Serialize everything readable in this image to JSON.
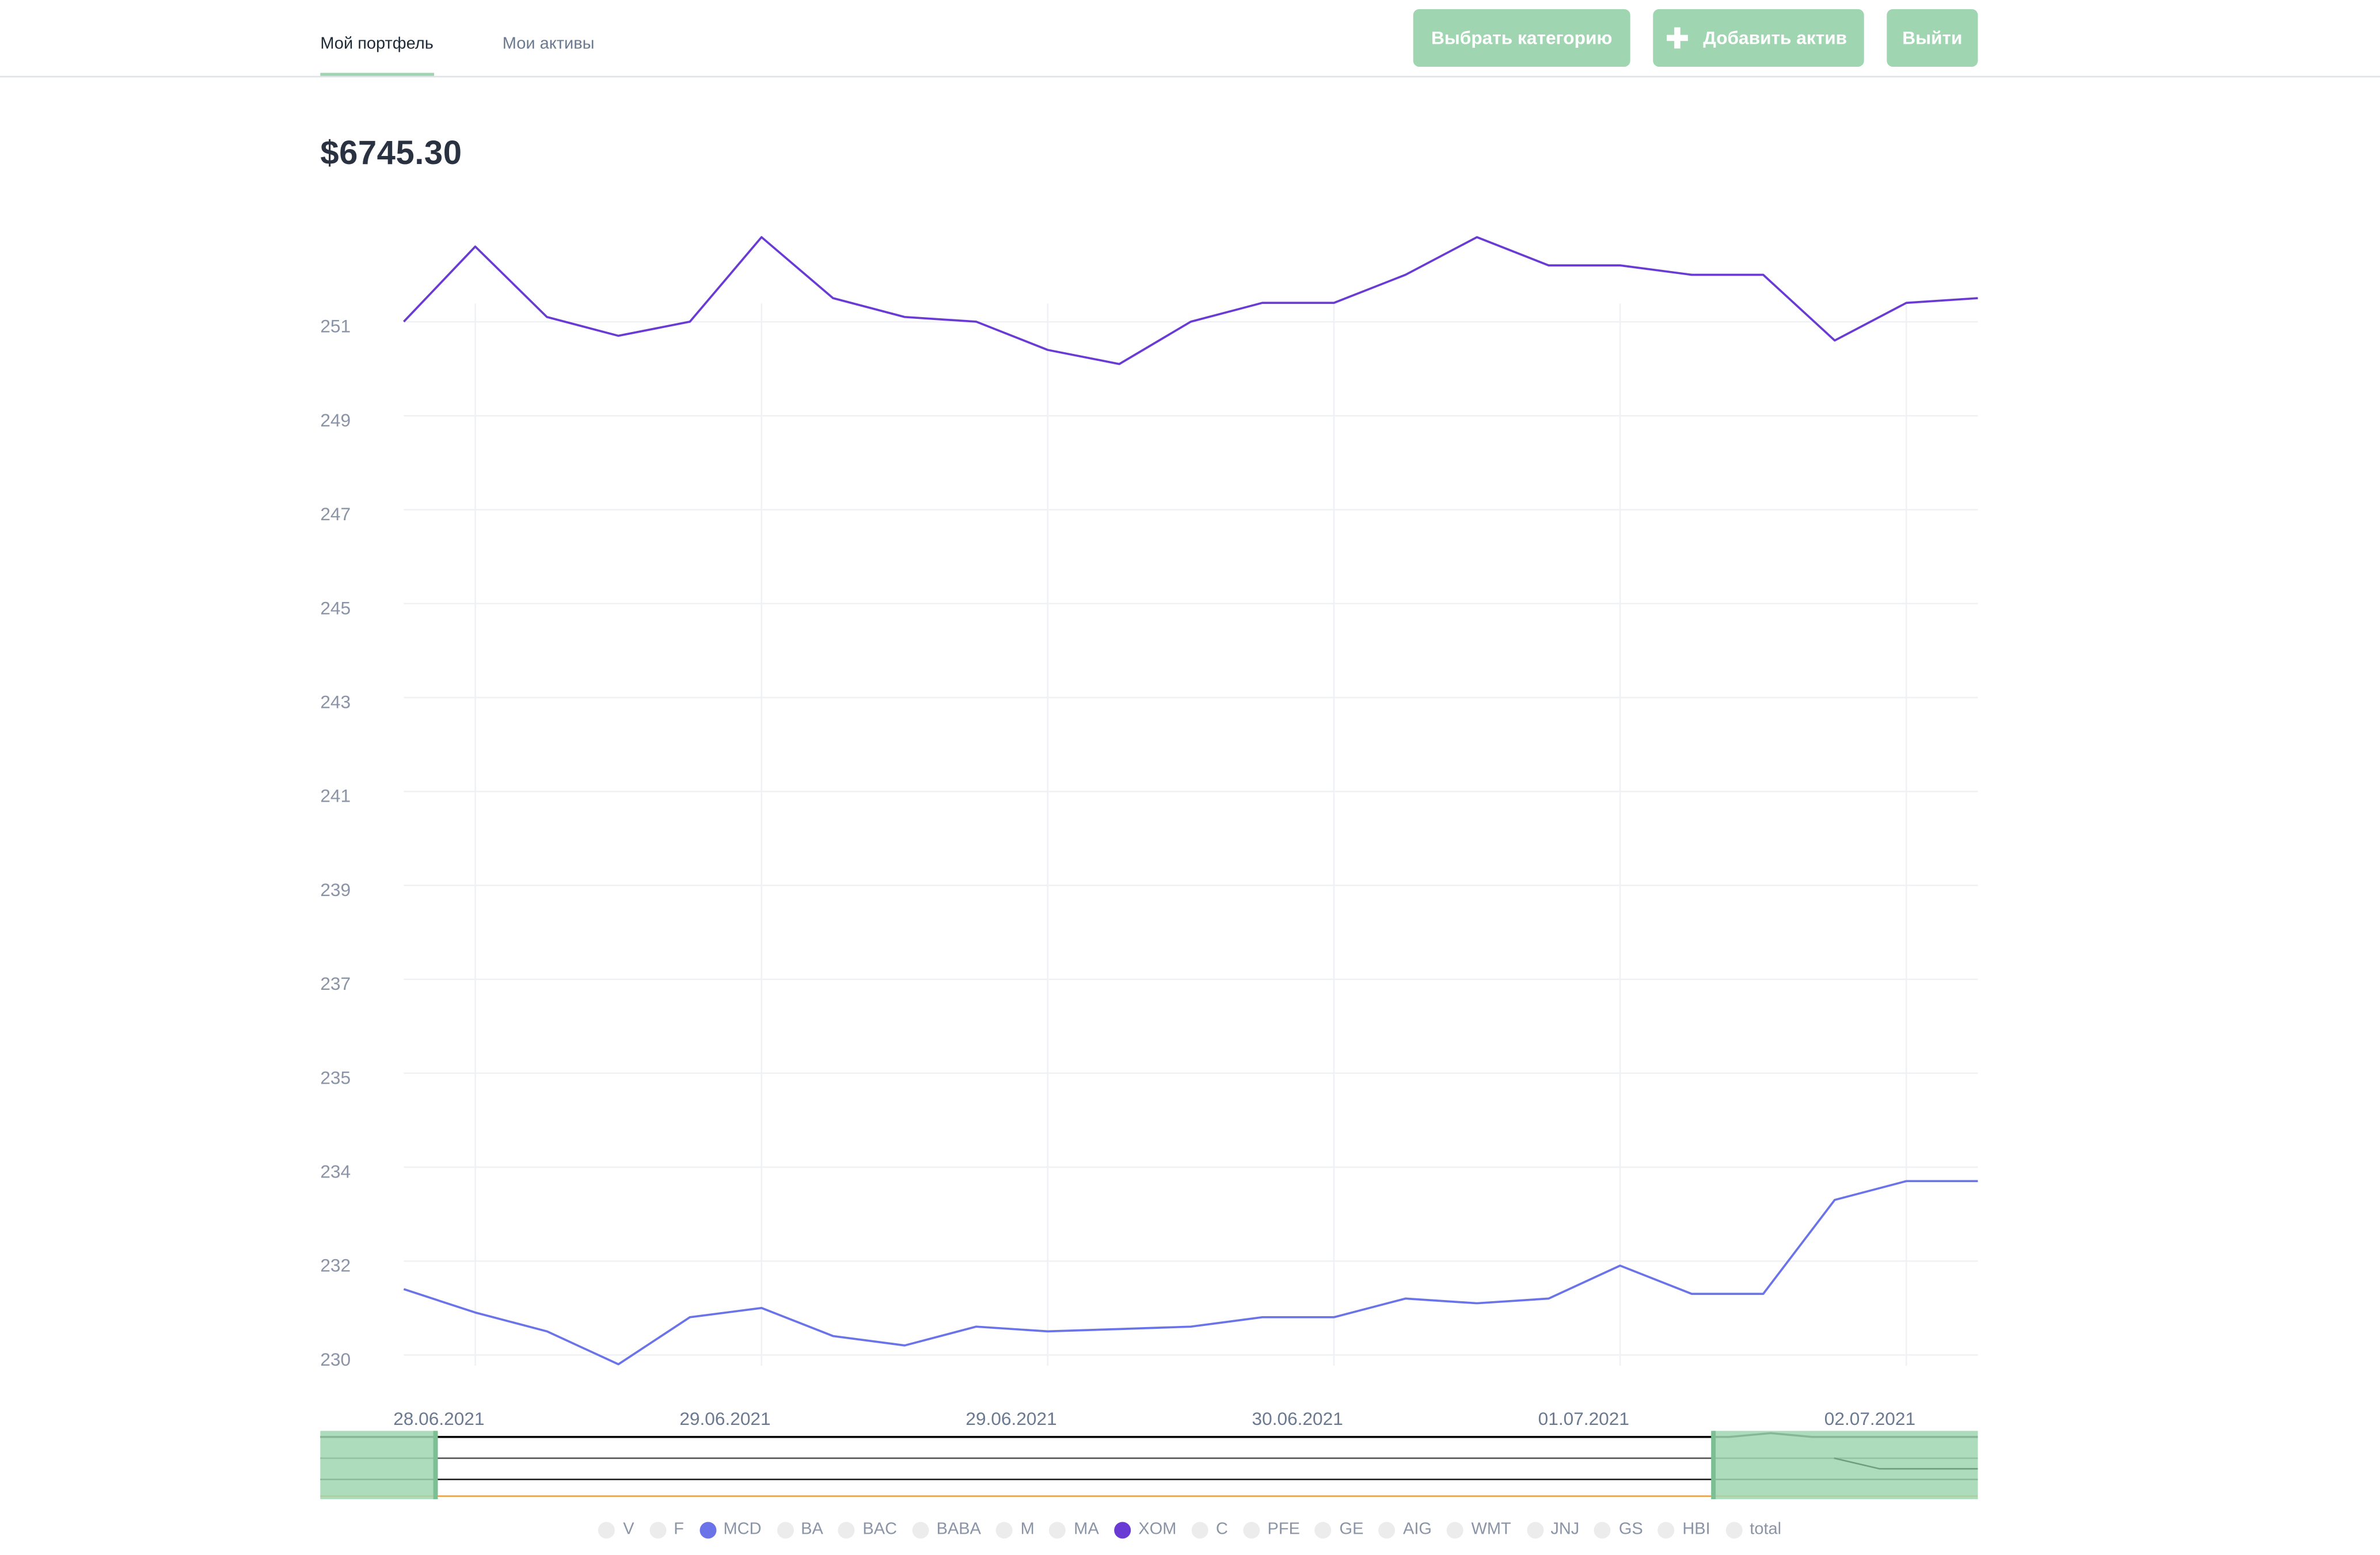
{
  "nav": {
    "tabs": [
      {
        "label": "Мой портфель",
        "active": true
      },
      {
        "label": "Мои активы",
        "active": false
      }
    ],
    "buttons": {
      "category": "Выбрать категорию",
      "add_asset": "Добавить актив",
      "logout": "Выйти"
    },
    "add_icon": "plus-icon"
  },
  "portfolio": {
    "total": "$6745.30"
  },
  "colors": {
    "accent_green": "#9fd6b1",
    "xom_line": "#6a3bd4",
    "mcd_line": "#6a74e8",
    "inactive_dot": "#ececec"
  },
  "chart_data": {
    "type": "line",
    "title": "",
    "xlabel": "",
    "ylabel": "",
    "x_ticks": [
      "28.06.2021",
      "29.06.2021",
      "29.06.2021",
      "30.06.2021",
      "01.07.2021",
      "02.07.2021"
    ],
    "y_ticks": [
      "230",
      "232",
      "234",
      "235",
      "237",
      "239",
      "241",
      "243",
      "245",
      "247",
      "249",
      "251"
    ],
    "grid": true,
    "points_per_series": 23,
    "series": [
      {
        "name": "XOM",
        "color": "#6a3bd4",
        "values": [
          251.1,
          252.7,
          251.2,
          250.8,
          251.1,
          252.9,
          251.6,
          251.2,
          251.1,
          250.5,
          250.2,
          251.1,
          251.5,
          251.5,
          252.1,
          252.9,
          252.3,
          252.3,
          252.1,
          252.1,
          250.7,
          251.5,
          251.6
        ]
      },
      {
        "name": "MCD",
        "color": "#6a74e8",
        "values": [
          231.5,
          231.0,
          230.6,
          229.9,
          230.9,
          231.1,
          230.5,
          230.3,
          230.7,
          230.6,
          230.65,
          230.7,
          230.9,
          230.9,
          231.3,
          231.2,
          231.3,
          232.0,
          231.4,
          231.4,
          233.4,
          233.8,
          233.8
        ]
      }
    ],
    "legend": {
      "position": "bottom",
      "items": [
        {
          "label": "V",
          "active": false
        },
        {
          "label": "F",
          "active": false
        },
        {
          "label": "MCD",
          "active": true,
          "color": "#6a74e8"
        },
        {
          "label": "BA",
          "active": false
        },
        {
          "label": "BAC",
          "active": false
        },
        {
          "label": "BABA",
          "active": false
        },
        {
          "label": "M",
          "active": false
        },
        {
          "label": "MA",
          "active": false
        },
        {
          "label": "XOM",
          "active": true,
          "color": "#6a3bd4"
        },
        {
          "label": "C",
          "active": false
        },
        {
          "label": "PFE",
          "active": false
        },
        {
          "label": "GE",
          "active": false
        },
        {
          "label": "AIG",
          "active": false
        },
        {
          "label": "WMT",
          "active": false
        },
        {
          "label": "JNJ",
          "active": false
        },
        {
          "label": "GS",
          "active": false
        },
        {
          "label": "HBI",
          "active": false
        },
        {
          "label": "total",
          "active": false
        }
      ]
    },
    "navigator": {
      "selected_range": [
        0.07,
        0.84
      ]
    }
  }
}
